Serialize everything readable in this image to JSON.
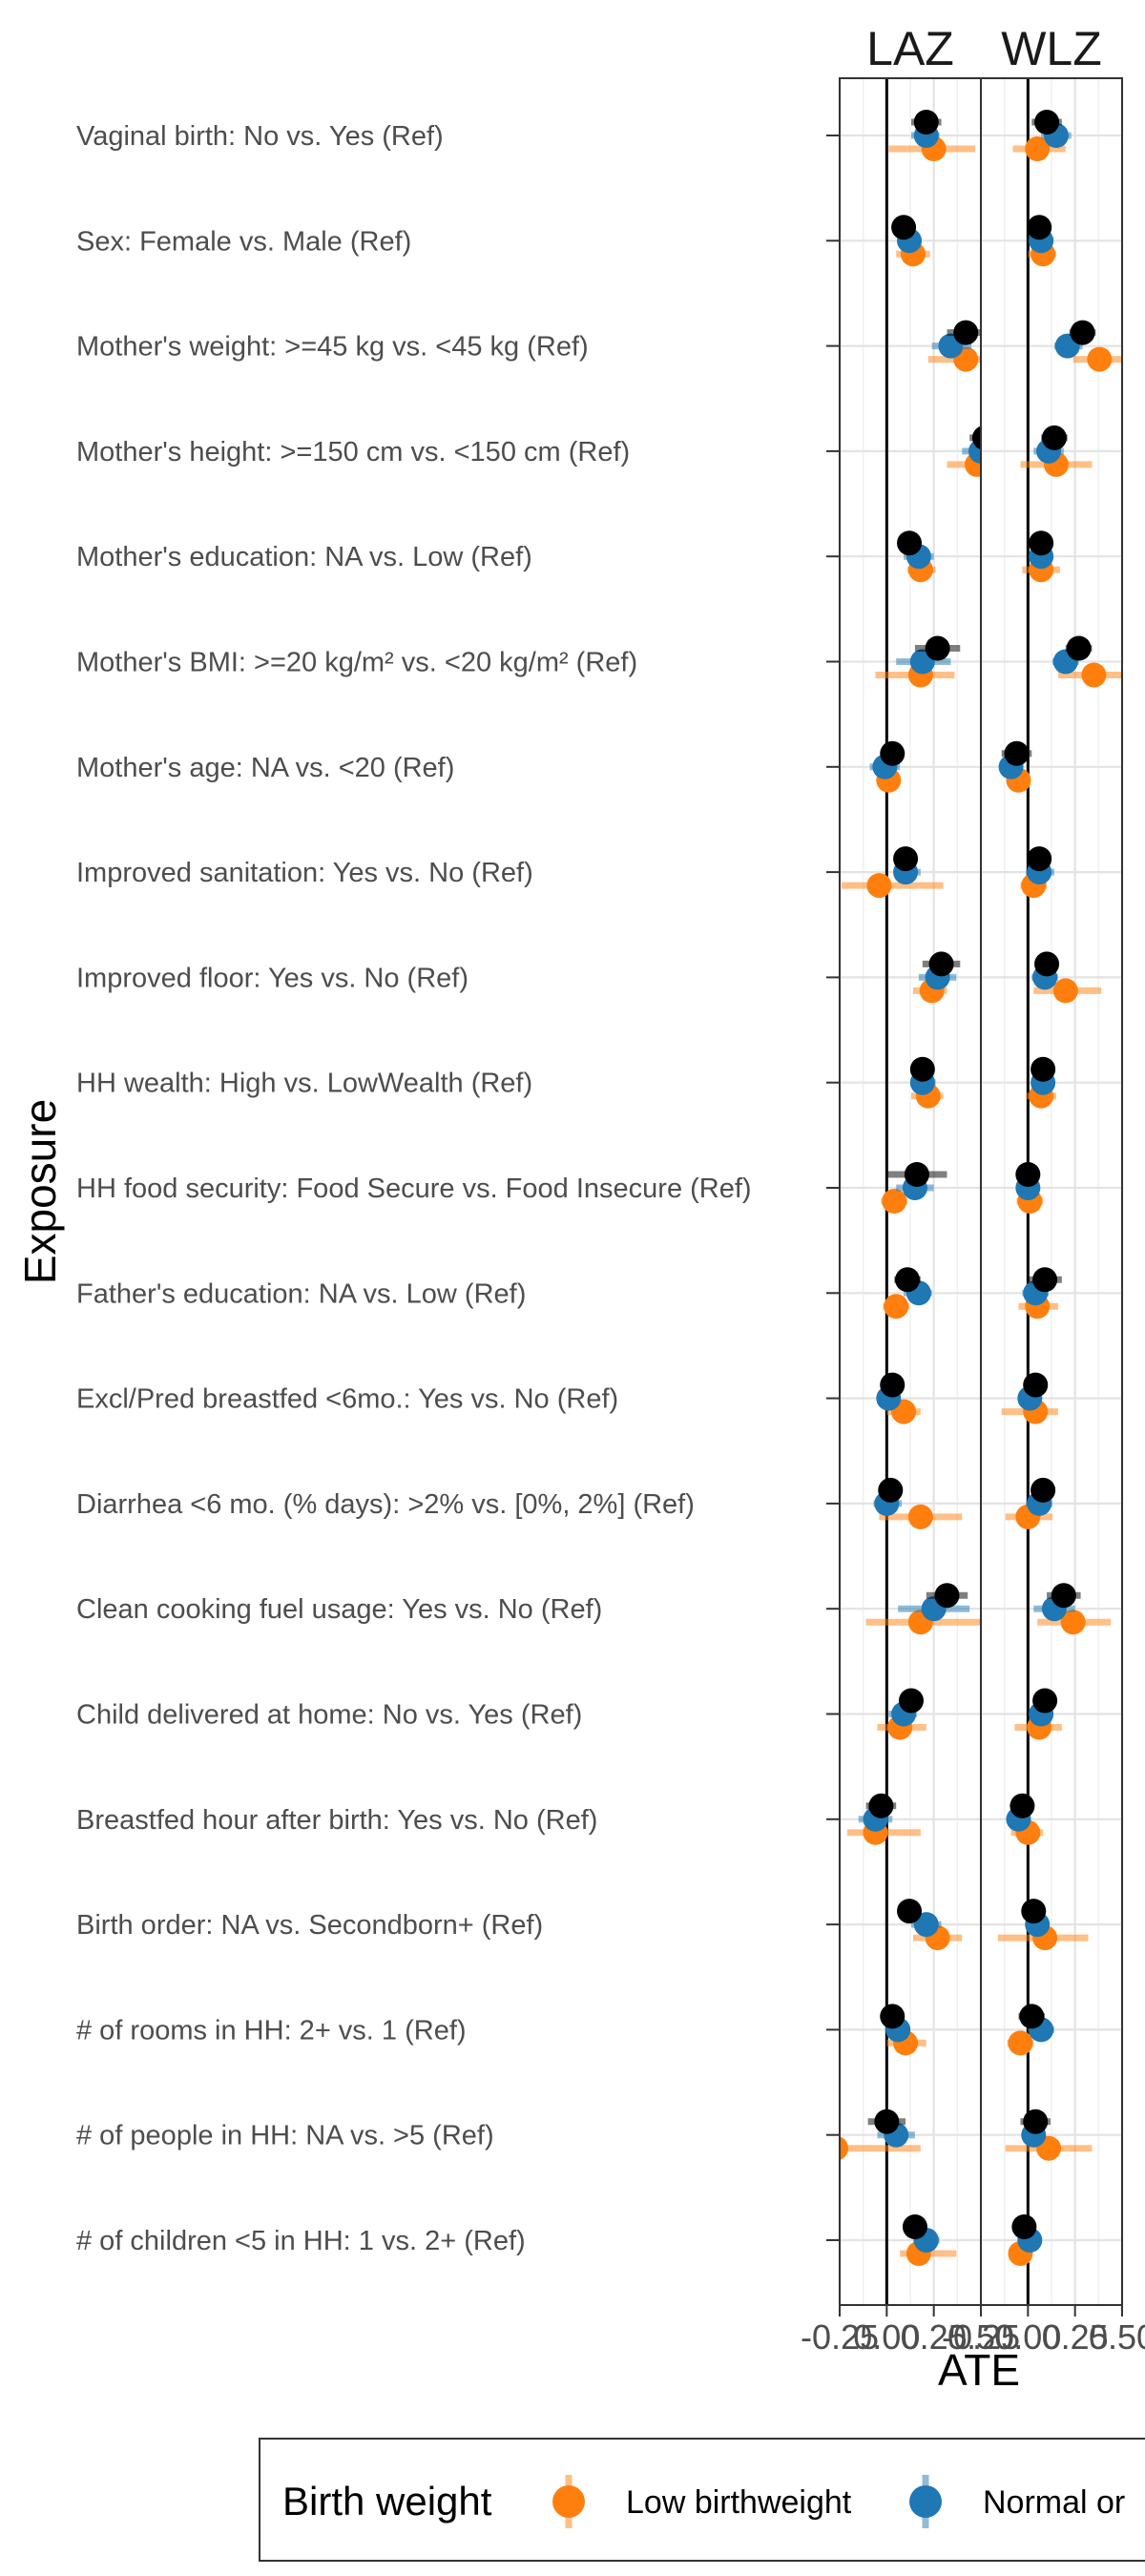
{
  "chart_data": {
    "type": "scatter",
    "subtype": "forest-plot-with-error-bars",
    "facets": [
      "LAZ",
      "WLZ"
    ],
    "xlabel": "ATE",
    "ylabel": "Exposure",
    "xlim": [
      -0.25,
      0.5
    ],
    "x_ticks": [
      -0.25,
      0.0,
      0.25,
      0.5
    ],
    "x_tick_labels": [
      "-0.25",
      "0.00",
      "0.25",
      "0.50"
    ],
    "reference_line_x": 0,
    "grid": true,
    "legend": {
      "position": "bottom",
      "title": "Birth weight",
      "entries": [
        {
          "label": "Low birthweight",
          "color": "#ff7f0e"
        },
        {
          "label": "Normal or",
          "color": "#1f77b4"
        }
      ]
    },
    "categories": [
      "Vaginal birth: No vs. Yes (Ref)",
      "Sex: Female vs. Male (Ref)",
      "Mother's weight: >=45 kg vs. <45 kg (Ref)",
      "Mother's height: >=150 cm vs. <150 cm (Ref)",
      "Mother's education: NA vs. Low (Ref)",
      "Mother's BMI: >=20 kg/m² vs. <20 kg/m² (Ref)",
      "Mother's age: NA vs. <20 (Ref)",
      "Improved sanitation: Yes vs. No (Ref)",
      "Improved floor: Yes vs. No (Ref)",
      "HH wealth: High vs. LowWealth (Ref)",
      "HH food security: Food Secure vs. Food Insecure (Ref)",
      "Father's education: NA vs. Low (Ref)",
      "Excl/Pred breastfed <6mo.: Yes vs. No (Ref)",
      "Diarrhea <6 mo. (% days): >2% vs. [0%, 2%] (Ref)",
      "Clean cooking fuel usage: Yes vs. No (Ref)",
      "Child delivered at home: No vs. Yes (Ref)",
      "Breastfed hour after birth: Yes vs. No (Ref)",
      "Birth order: NA vs. Secondborn+ (Ref)",
      "# of rooms in HH: 2+ vs. 1 (Ref)",
      "# of people in HH: NA vs. >5 (Ref)",
      "# of children <5 in HH: 1 vs. 2+ (Ref)"
    ],
    "series": [
      {
        "name": "Low birthweight",
        "color": "#ff7f0e",
        "LAZ": {
          "estimate": [
            0.25,
            0.14,
            0.42,
            0.48,
            0.18,
            0.18,
            0.01,
            -0.04,
            0.24,
            0.22,
            0.04,
            0.05,
            0.09,
            0.18,
            0.18,
            0.07,
            -0.06,
            0.27,
            0.1,
            -0.27,
            0.17
          ],
          "lower": [
            0.01,
            0.05,
            0.22,
            0.32,
            0.11,
            -0.06,
            -0.04,
            -0.24,
            0.14,
            0.13,
            -0.03,
            -0.02,
            0.0,
            -0.04,
            -0.11,
            -0.05,
            -0.21,
            0.14,
            0.0,
            -0.4,
            0.07
          ],
          "upper": [
            0.47,
            0.23,
            0.6,
            0.62,
            0.26,
            0.36,
            0.06,
            0.3,
            0.32,
            0.3,
            0.11,
            0.12,
            0.18,
            0.4,
            0.5,
            0.21,
            0.18,
            0.4,
            0.21,
            0.18,
            0.37
          ]
        },
        "WLZ": {
          "estimate": [
            0.05,
            0.08,
            0.38,
            0.15,
            0.07,
            0.35,
            -0.05,
            0.03,
            0.2,
            0.07,
            0.01,
            0.05,
            0.04,
            0.0,
            0.24,
            0.06,
            0.0,
            0.09,
            -0.04,
            0.11,
            -0.04
          ],
          "lower": [
            -0.08,
            0.0,
            0.24,
            -0.04,
            -0.03,
            0.16,
            -0.1,
            -0.04,
            0.03,
            -0.01,
            -0.06,
            -0.05,
            -0.14,
            -0.12,
            0.05,
            -0.07,
            -0.09,
            -0.16,
            -0.11,
            -0.12,
            -0.1
          ],
          "upper": [
            0.2,
            0.15,
            0.52,
            0.34,
            0.17,
            0.54,
            0.0,
            0.1,
            0.39,
            0.15,
            0.08,
            0.16,
            0.16,
            0.13,
            0.44,
            0.18,
            0.08,
            0.32,
            0.03,
            0.34,
            0.02
          ]
        }
      },
      {
        "name": "Normal or",
        "color": "#1f77b4",
        "LAZ": {
          "estimate": [
            0.21,
            0.12,
            0.34,
            0.5,
            0.17,
            0.19,
            -0.01,
            0.1,
            0.27,
            0.19,
            0.15,
            0.17,
            0.01,
            0.0,
            0.25,
            0.09,
            -0.06,
            0.21,
            0.06,
            0.05,
            0.21
          ],
          "lower": [
            0.13,
            0.06,
            0.24,
            0.4,
            0.09,
            0.05,
            -0.09,
            0.04,
            0.17,
            0.13,
            0.05,
            0.09,
            -0.05,
            -0.07,
            0.06,
            0.01,
            -0.15,
            0.13,
            0.01,
            -0.05,
            0.14
          ],
          "upper": [
            0.28,
            0.17,
            0.45,
            0.58,
            0.25,
            0.34,
            0.07,
            0.18,
            0.37,
            0.26,
            0.25,
            0.24,
            0.07,
            0.08,
            0.44,
            0.16,
            0.03,
            0.29,
            0.12,
            0.15,
            0.28
          ]
        },
        "WLZ": {
          "estimate": [
            0.15,
            0.07,
            0.21,
            0.11,
            0.07,
            0.2,
            -0.09,
            0.06,
            0.09,
            0.08,
            0.0,
            0.04,
            0.01,
            0.06,
            0.14,
            0.07,
            -0.05,
            0.05,
            0.07,
            0.03,
            0.01
          ],
          "lower": [
            0.07,
            0.02,
            0.14,
            0.03,
            0.01,
            0.13,
            -0.15,
            -0.01,
            0.02,
            0.02,
            -0.05,
            -0.03,
            -0.05,
            -0.01,
            0.03,
            0.01,
            -0.11,
            -0.01,
            0.0,
            -0.03,
            -0.05
          ],
          "upper": [
            0.23,
            0.12,
            0.29,
            0.19,
            0.13,
            0.27,
            -0.03,
            0.14,
            0.16,
            0.14,
            0.05,
            0.11,
            0.07,
            0.13,
            0.25,
            0.13,
            0.01,
            0.11,
            0.14,
            0.09,
            0.07
          ]
        }
      },
      {
        "name": "",
        "color": "#000000",
        "LAZ": {
          "estimate": [
            0.21,
            0.09,
            0.42,
            0.52,
            0.12,
            0.27,
            0.03,
            0.1,
            0.29,
            0.19,
            0.16,
            0.11,
            0.03,
            0.02,
            0.32,
            0.13,
            -0.03,
            0.12,
            0.03,
            0.0,
            0.15
          ],
          "lower": [
            0.13,
            0.04,
            0.32,
            0.44,
            0.06,
            0.15,
            -0.02,
            0.04,
            0.19,
            0.13,
            0.0,
            0.04,
            -0.03,
            -0.04,
            0.21,
            0.07,
            -0.11,
            0.06,
            -0.03,
            -0.1,
            0.09
          ],
          "upper": [
            0.29,
            0.14,
            0.52,
            0.6,
            0.18,
            0.39,
            0.08,
            0.16,
            0.39,
            0.25,
            0.32,
            0.18,
            0.09,
            0.08,
            0.43,
            0.19,
            0.05,
            0.18,
            0.09,
            0.1,
            0.21
          ]
        },
        "WLZ": {
          "estimate": [
            0.1,
            0.06,
            0.29,
            0.14,
            0.07,
            0.27,
            -0.06,
            0.06,
            0.1,
            0.08,
            0.0,
            0.09,
            0.04,
            0.08,
            0.19,
            0.09,
            -0.03,
            0.03,
            0.02,
            0.04,
            -0.02
          ],
          "lower": [
            0.02,
            0.01,
            0.22,
            0.07,
            0.02,
            0.2,
            -0.14,
            0.0,
            0.04,
            0.03,
            -0.05,
            0.0,
            -0.01,
            0.02,
            0.1,
            0.03,
            -0.09,
            -0.03,
            -0.05,
            -0.04,
            -0.08
          ],
          "upper": [
            0.18,
            0.11,
            0.36,
            0.21,
            0.12,
            0.34,
            0.02,
            0.12,
            0.16,
            0.13,
            0.05,
            0.18,
            0.09,
            0.14,
            0.28,
            0.15,
            0.03,
            0.09,
            0.09,
            0.12,
            0.04
          ]
        }
      }
    ]
  }
}
